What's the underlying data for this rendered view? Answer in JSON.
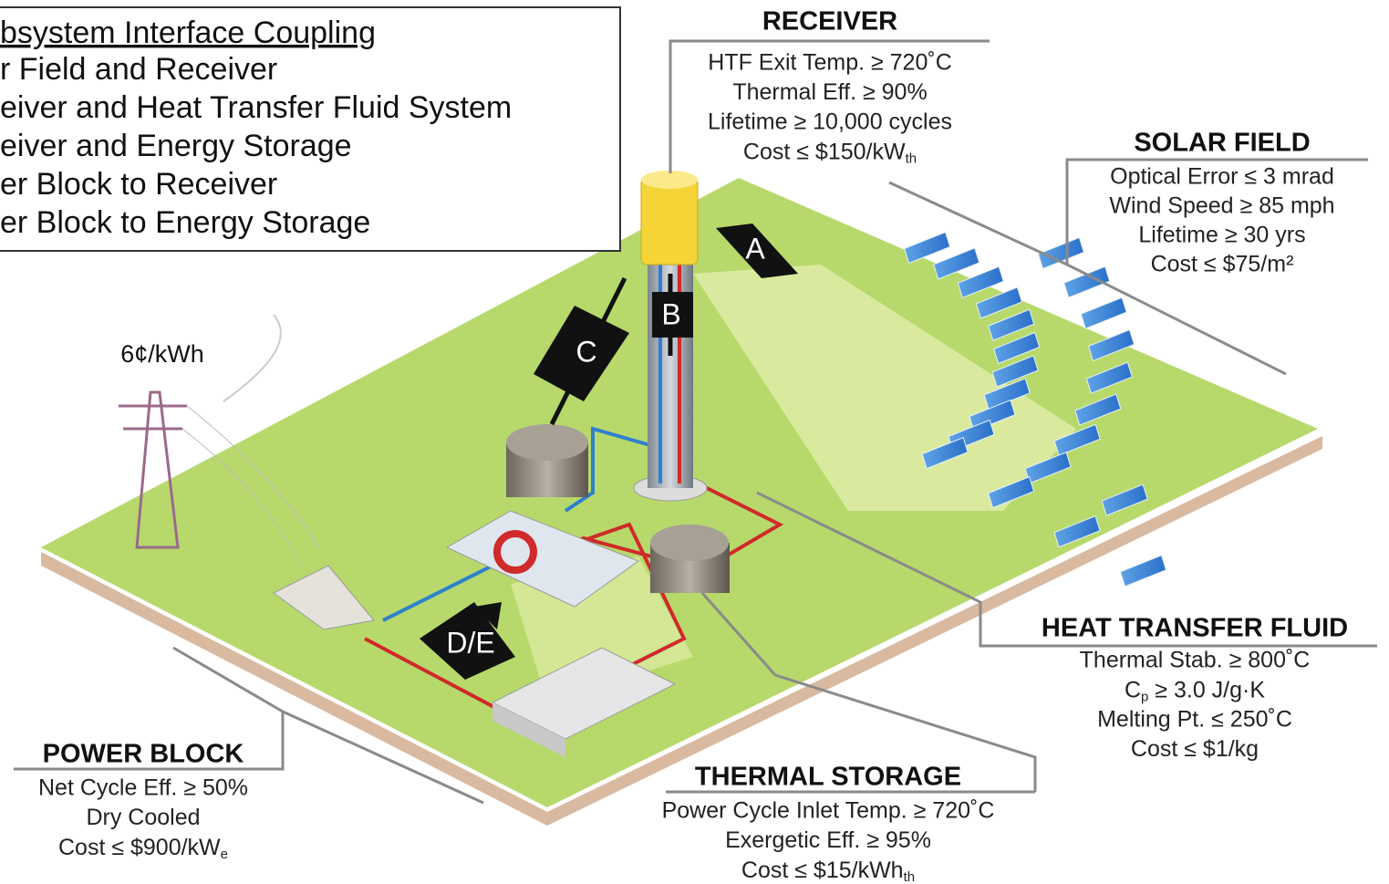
{
  "legend": {
    "title": "bsystem Interface Coupling",
    "lines": [
      "r Field and Receiver",
      "eiver and Heat Transfer Fluid System",
      "eiver and Energy Storage",
      "er Block to Receiver",
      "er Block to Energy Storage"
    ]
  },
  "price": "6¢/kWh",
  "interfaces": [
    "A",
    "B",
    "C",
    "D/E"
  ],
  "receiver": {
    "title": "RECEIVER",
    "lines": [
      "HTF Exit Temp. ≥ 720˚C",
      "Thermal Eff. ≥ 90%",
      "Lifetime ≥ 10,000 cycles",
      {
        "text": "Cost ≤ $150/kW",
        "sub": "th"
      }
    ]
  },
  "solar_field": {
    "title": "SOLAR FIELD",
    "lines": [
      "Optical Error ≤ 3 mrad",
      "Wind Speed ≥ 85 mph",
      "Lifetime ≥ 30 yrs",
      "Cost ≤ $75/m²"
    ]
  },
  "heat_transfer_fluid": {
    "title": "HEAT TRANSFER FLUID",
    "lines": [
      "Thermal Stab. ≥ 800˚C",
      {
        "text": "C",
        "sub": "p",
        "after": " ≥ 3.0 J/g·K"
      },
      "Melting Pt. ≤ 250˚C",
      "Cost ≤ $1/kg"
    ]
  },
  "thermal_storage": {
    "title": "THERMAL STORAGE",
    "lines": [
      "Power Cycle Inlet Temp. ≥ 720˚C",
      "Exergetic Eff. ≥ 95%",
      {
        "text": "Cost ≤ $15/kWh",
        "sub": "th"
      }
    ]
  },
  "power_block": {
    "title": "POWER BLOCK",
    "lines": [
      "Net Cycle Eff. ≥ 50%",
      "Dry Cooled",
      {
        "text": "Cost ≤ $900/kW",
        "sub": "e"
      }
    ]
  }
}
